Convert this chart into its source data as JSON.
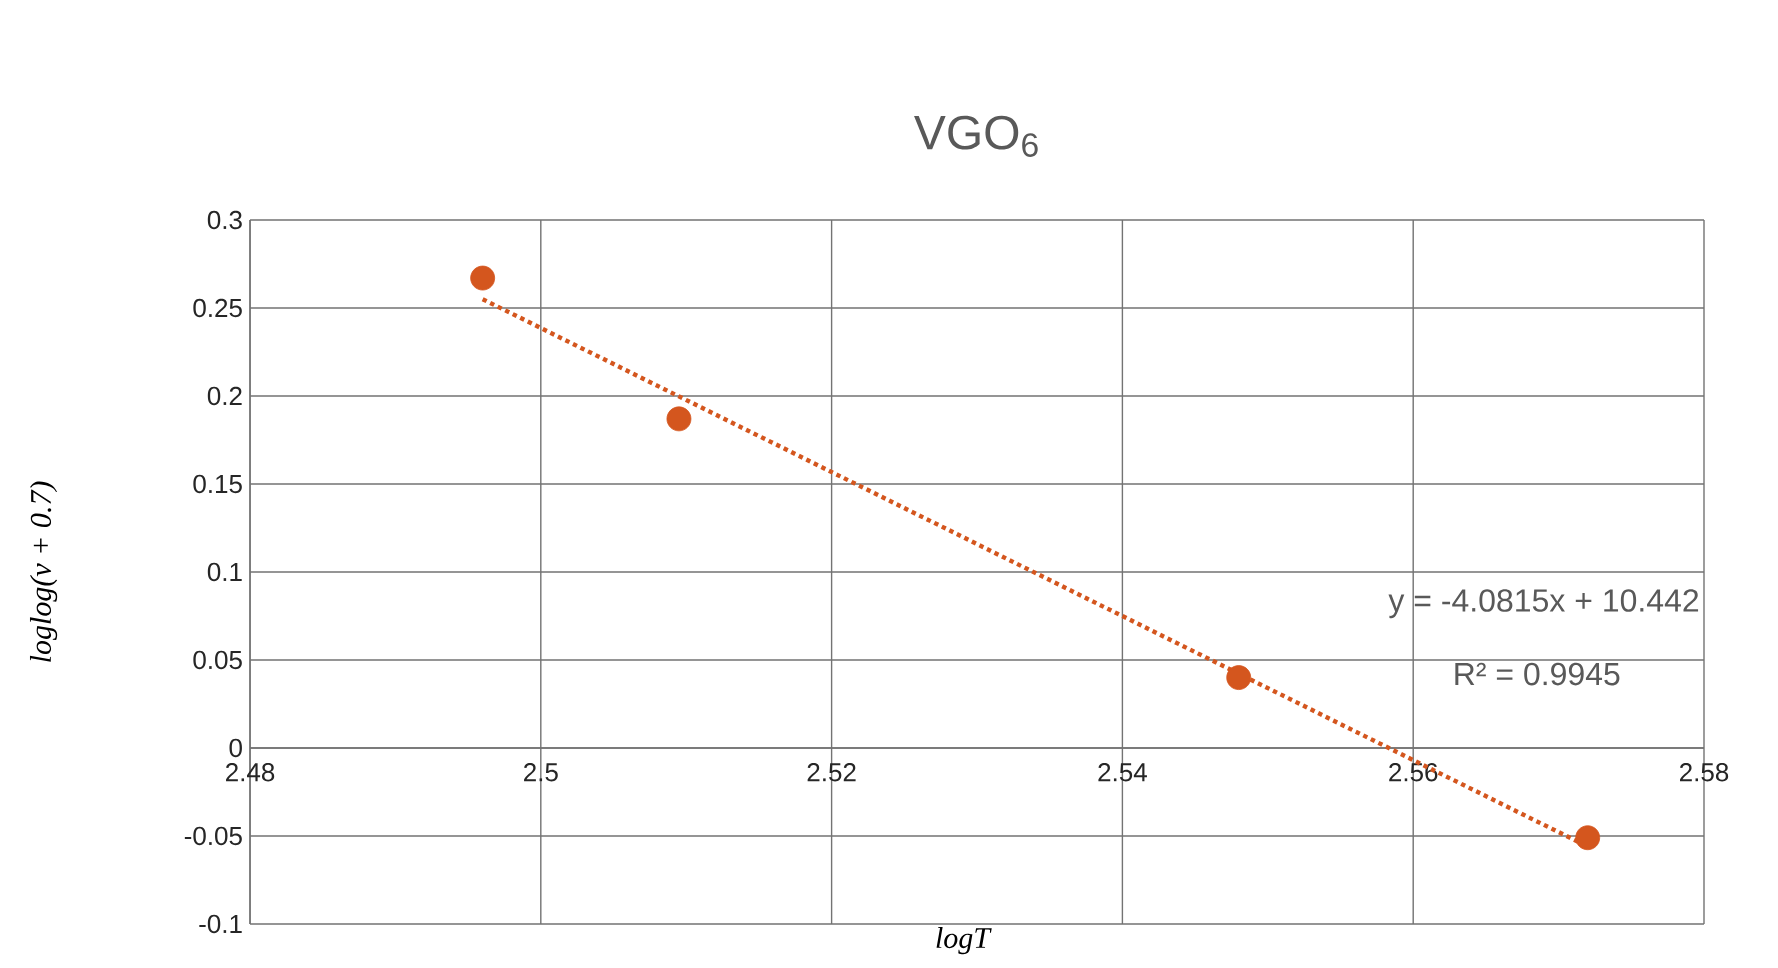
{
  "chart_data": {
    "type": "scatter",
    "title": "VGO$_{6}$",
    "xlabel": "logT",
    "ylabel": "loglog(ν + 0.7)",
    "xlim": [
      2.48,
      2.58
    ],
    "xticks": [
      2.48,
      2.5,
      2.52,
      2.54,
      2.56,
      2.58
    ],
    "ylim": [
      -0.1,
      0.3
    ],
    "yticks": [
      -0.1,
      -0.05,
      0,
      0.05,
      0.1,
      0.15,
      0.2,
      0.25,
      0.3
    ],
    "grid": true,
    "series": [
      {
        "marker": "circle",
        "color": "#d4561e",
        "x": [
          2.496,
          2.5095,
          2.548,
          2.572
        ],
        "values": [
          0.267,
          0.187,
          0.04,
          -0.051
        ]
      },
      {
        "type": "line",
        "marker": "none",
        "color": "#d4561e",
        "line_style": "dotted",
        "x": [
          2.496,
          2.572
        ],
        "values": [
          0.255,
          -0.056
        ]
      }
    ],
    "annotations": [
      "y = -4.0815x + 10.442",
      "R² = 0.9945"
    ]
  }
}
